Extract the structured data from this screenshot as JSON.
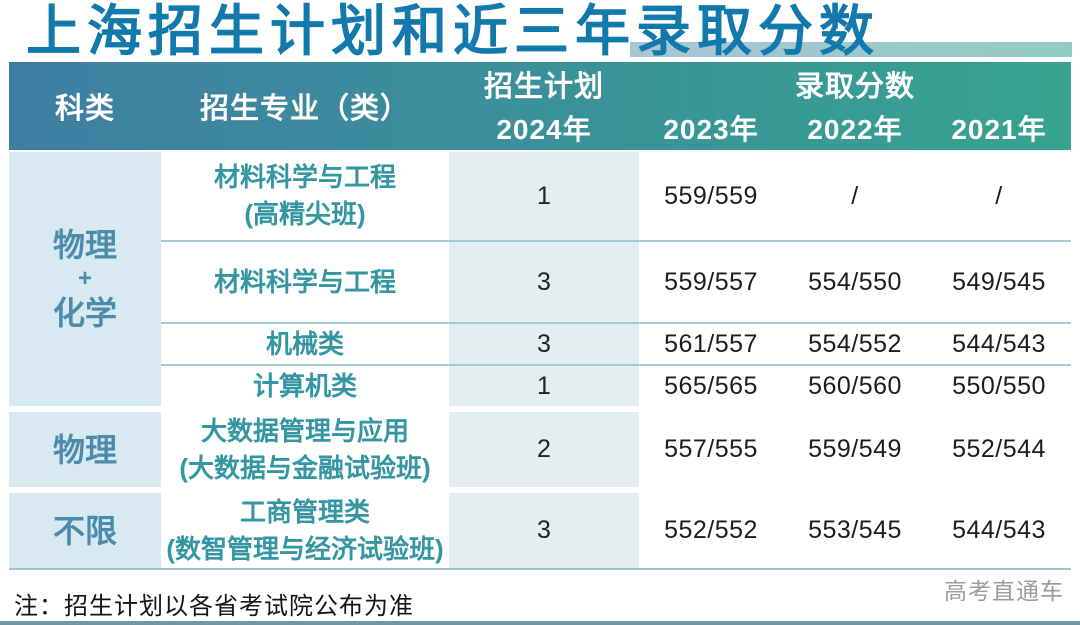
{
  "page": {
    "title": "上海招生计划和近三年录取分数",
    "note": "注：招生计划以各省考试院公布为准",
    "watermark": "高考直通车"
  },
  "colors": {
    "title_text": "#1179ab",
    "header_gradient_left": "#3f7ea3",
    "header_gradient_right": "#36a390",
    "header_text": "#ffffff",
    "category_cell_bg": "#d8e9f1",
    "category_text": "#4b8cab",
    "major_text": "#3396a2",
    "plan_cell_bg": "#e2eef0",
    "score_text": "#1c1c1c",
    "row_divider": "#a4cbd5"
  },
  "table": {
    "header": {
      "category": "科类",
      "major": "招生专业（类）",
      "plan_title": "招生计划",
      "plan_year": "2024年",
      "score_title": "录取分数",
      "years": [
        "2023年",
        "2022年",
        "2021年"
      ]
    },
    "groups": [
      {
        "category_lines": [
          "物理",
          "+",
          "化学"
        ],
        "rows": [
          {
            "major": [
              "材料科学与工程",
              "(高精尖班)"
            ],
            "plan": "1",
            "scores": [
              "559/559",
              "/",
              "/"
            ]
          },
          {
            "major": [
              "材料科学与工程"
            ],
            "plan": "3",
            "scores": [
              "559/557",
              "554/550",
              "549/545"
            ]
          },
          {
            "major": [
              "机械类"
            ],
            "plan": "3",
            "scores": [
              "561/557",
              "554/552",
              "544/543"
            ]
          },
          {
            "major": [
              "计算机类"
            ],
            "plan": "1",
            "scores": [
              "565/565",
              "560/560",
              "550/550"
            ]
          }
        ]
      },
      {
        "category_lines": [
          "物理"
        ],
        "rows": [
          {
            "major": [
              "大数据管理与应用",
              "(大数据与金融试验班)"
            ],
            "plan": "2",
            "scores": [
              "557/555",
              "559/549",
              "552/544"
            ]
          }
        ]
      },
      {
        "category_lines": [
          "不限"
        ],
        "rows": [
          {
            "major": [
              "工商管理类",
              "(数智管理与经济试验班)"
            ],
            "plan": "3",
            "scores": [
              "552/552",
              "553/545",
              "544/543"
            ]
          }
        ]
      }
    ]
  }
}
